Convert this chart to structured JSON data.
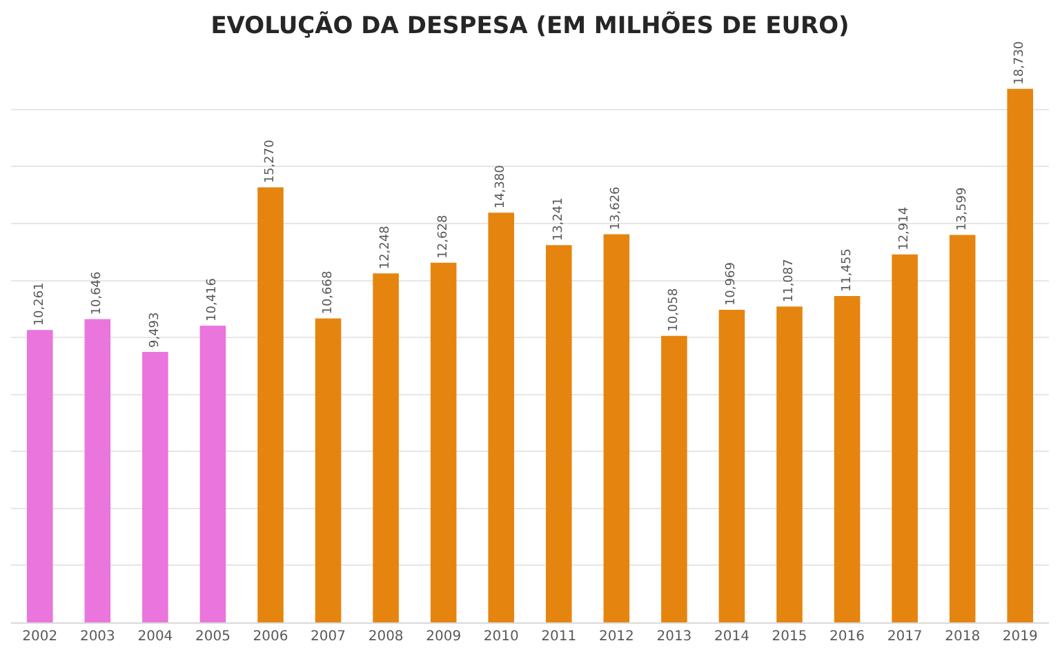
{
  "chart_data": {
    "type": "bar",
    "title": "EVOLUÇÃO DA DESPESA (EM MILHÕES DE EURO)",
    "categories": [
      "2002",
      "2003",
      "2004",
      "2005",
      "2006",
      "2007",
      "2008",
      "2009",
      "2010",
      "2011",
      "2012",
      "2013",
      "2014",
      "2015",
      "2016",
      "2017",
      "2018",
      "2019"
    ],
    "values": [
      10261,
      10646,
      9493,
      10416,
      15270,
      10668,
      12248,
      12628,
      14380,
      13241,
      13626,
      10058,
      10969,
      11087,
      11455,
      12914,
      13599,
      18730
    ],
    "value_labels": [
      "10,261",
      "10,646",
      "9,493",
      "10,416",
      "15,270",
      "10,668",
      "12,248",
      "12,628",
      "14,380",
      "13,241",
      "13,626",
      "10,058",
      "10,969",
      "11,087",
      "11,455",
      "12,914",
      "13,599",
      "18,730"
    ],
    "colors": [
      "#ea75dd",
      "#ea75dd",
      "#ea75dd",
      "#ea75dd",
      "#e5850f",
      "#e5850f",
      "#e5850f",
      "#e5850f",
      "#e5850f",
      "#e5850f",
      "#e5850f",
      "#e5850f",
      "#e5850f",
      "#e5850f",
      "#e5850f",
      "#e5850f",
      "#e5850f",
      "#e5850f"
    ],
    "grid": "y",
    "tick_labels": "x"
  }
}
